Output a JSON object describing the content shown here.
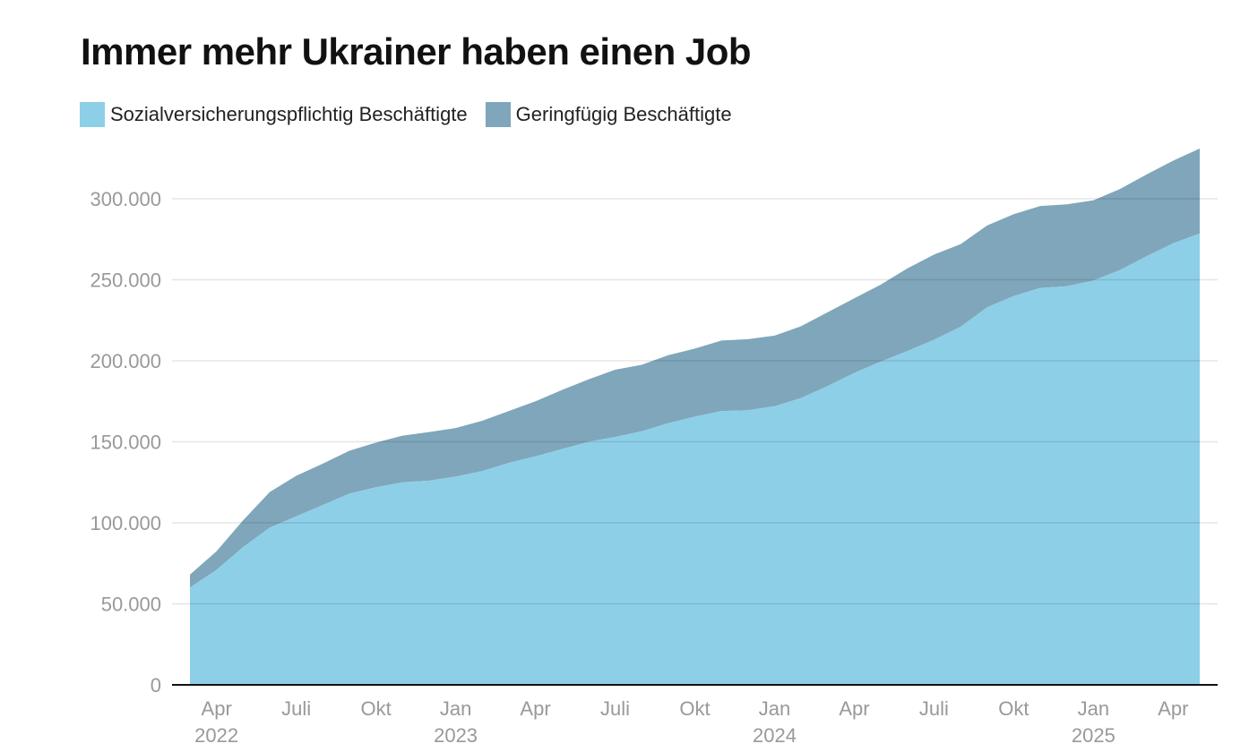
{
  "chart_data": {
    "type": "area",
    "stacked": true,
    "title": "Immer mehr Ukrainer haben einen Job",
    "xlabel": "",
    "ylabel": "",
    "ylim": [
      0,
      330000
    ],
    "y_ticks": [
      {
        "value": 0,
        "label": "0"
      },
      {
        "value": 50000,
        "label": "50.000"
      },
      {
        "value": 100000,
        "label": "100.000"
      },
      {
        "value": 150000,
        "label": "150.000"
      },
      {
        "value": 200000,
        "label": "200.000"
      },
      {
        "value": 250000,
        "label": "250.000"
      },
      {
        "value": 300000,
        "label": "300.000"
      }
    ],
    "x_ticks": [
      {
        "index": 1,
        "label": "Apr",
        "year": "2022"
      },
      {
        "index": 4,
        "label": "Juli",
        "year": ""
      },
      {
        "index": 7,
        "label": "Okt",
        "year": ""
      },
      {
        "index": 10,
        "label": "Jan",
        "year": "2023"
      },
      {
        "index": 13,
        "label": "Apr",
        "year": ""
      },
      {
        "index": 16,
        "label": "Juli",
        "year": ""
      },
      {
        "index": 19,
        "label": "Okt",
        "year": ""
      },
      {
        "index": 22,
        "label": "Jan",
        "year": "2024"
      },
      {
        "index": 25,
        "label": "Apr",
        "year": ""
      },
      {
        "index": 28,
        "label": "Juli",
        "year": ""
      },
      {
        "index": 31,
        "label": "Okt",
        "year": ""
      },
      {
        "index": 34,
        "label": "Jan",
        "year": "2025"
      },
      {
        "index": 37,
        "label": "Apr",
        "year": ""
      }
    ],
    "x": [
      "2022-03",
      "2022-04",
      "2022-05",
      "2022-06",
      "2022-07",
      "2022-08",
      "2022-09",
      "2022-10",
      "2022-11",
      "2022-12",
      "2023-01",
      "2023-02",
      "2023-03",
      "2023-04",
      "2023-05",
      "2023-06",
      "2023-07",
      "2023-08",
      "2023-09",
      "2023-10",
      "2023-11",
      "2023-12",
      "2024-01",
      "2024-02",
      "2024-03",
      "2024-04",
      "2024-05",
      "2024-06",
      "2024-07",
      "2024-08",
      "2024-09",
      "2024-10",
      "2024-11",
      "2024-12",
      "2025-01",
      "2025-02",
      "2025-03",
      "2025-04",
      "2025-05"
    ],
    "series": [
      {
        "name": "Sozialversicherungspflichtig Beschäftigte",
        "color": "#8dcfe6",
        "values": [
          60000,
          71000,
          85000,
          97000,
          104000,
          111000,
          118000,
          122000,
          125000,
          126000,
          128500,
          132000,
          137000,
          141000,
          145500,
          150000,
          153000,
          156500,
          161500,
          165500,
          169000,
          169500,
          172000,
          177000,
          184500,
          192500,
          199500,
          206000,
          213000,
          221000,
          233000,
          240000,
          245000,
          246000,
          249500,
          256000,
          264500,
          272500,
          278500
        ]
      },
      {
        "name": "Geringfügig Beschäftigte",
        "color": "#7fa6ba",
        "values": [
          8000,
          11500,
          16500,
          22000,
          25000,
          25500,
          26500,
          27500,
          28800,
          30000,
          30000,
          31000,
          32000,
          34000,
          36500,
          38500,
          41500,
          41000,
          42000,
          42000,
          43500,
          43800,
          43500,
          44300,
          45500,
          46000,
          47500,
          51000,
          52500,
          51000,
          50500,
          50500,
          50500,
          50500,
          49500,
          50000,
          50500,
          51000,
          52500
        ]
      }
    ],
    "grid": true,
    "legend": "top-left"
  }
}
